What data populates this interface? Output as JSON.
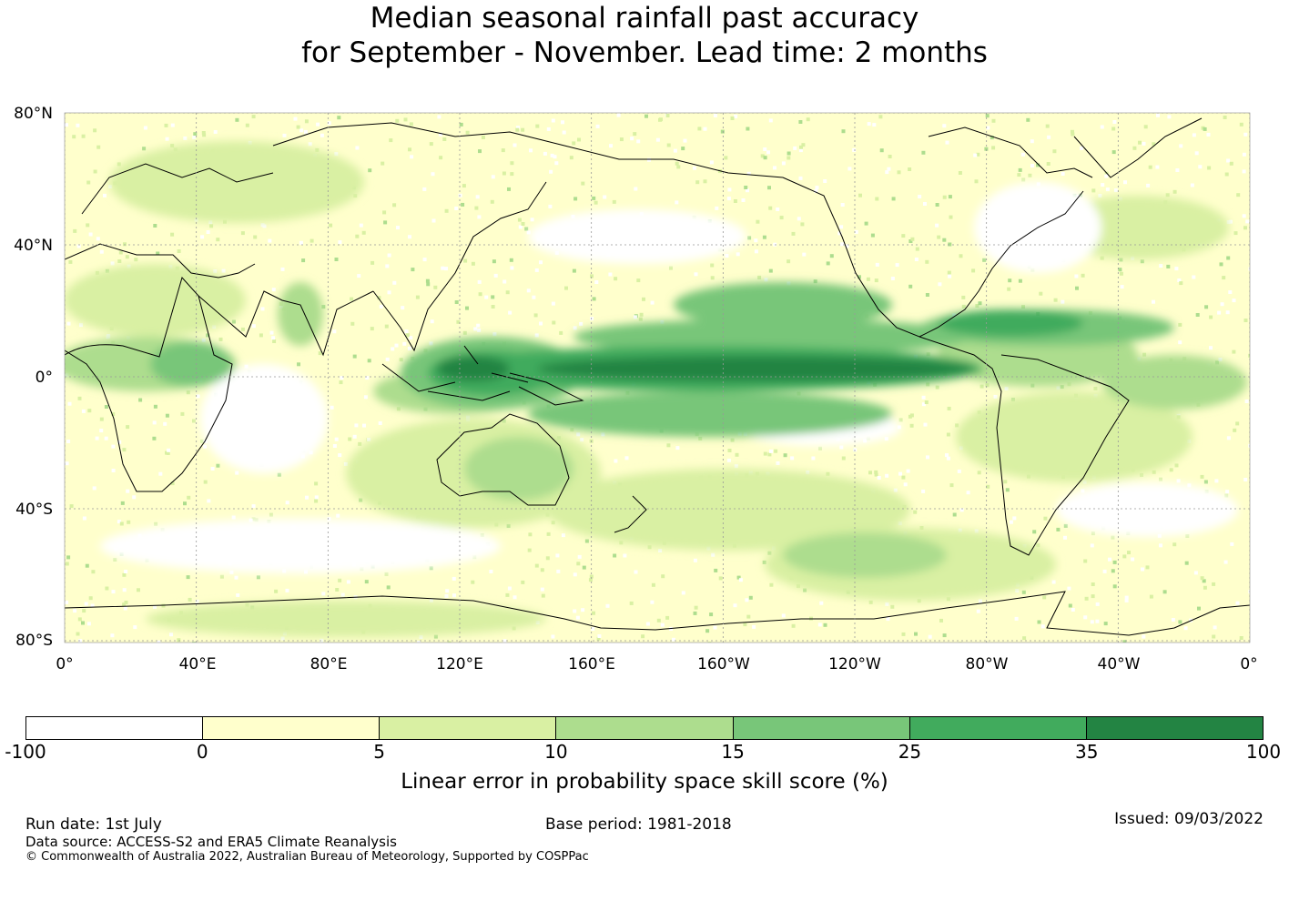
{
  "title": {
    "line1": "Median seasonal rainfall past accuracy",
    "line2": "for September - November. Lead time: 2 months"
  },
  "map": {
    "lat_labels": [
      "80°N",
      "40°N",
      "0°",
      "40°S",
      "80°S"
    ],
    "lon_labels": [
      "0°",
      "40°E",
      "80°E",
      "120°E",
      "160°E",
      "160°W",
      "120°W",
      "80°W",
      "40°W",
      "0°"
    ],
    "grid": "dotted",
    "coastline_color": "#000000"
  },
  "colorbar": {
    "ticks": [
      "-100",
      "0",
      "5",
      "10",
      "15",
      "25",
      "35",
      "100"
    ],
    "colors": [
      "#ffffff",
      "#ffffcc",
      "#d9f0a3",
      "#addd8e",
      "#78c679",
      "#41ab5d",
      "#238443"
    ],
    "label": "Linear error in probability space skill score (%)"
  },
  "footer": {
    "run_date": "Run date: 1st July",
    "base_period": "Base period: 1981-2018",
    "issued": "Issued: 09/03/2022",
    "data_source": "Data source: ACCESS-S2 and ERA5 Climate Reanalysis",
    "copyright": "© Commonwealth of Australia 2022, Australian Bureau of Meteorology, Supported by COSPPac"
  }
}
